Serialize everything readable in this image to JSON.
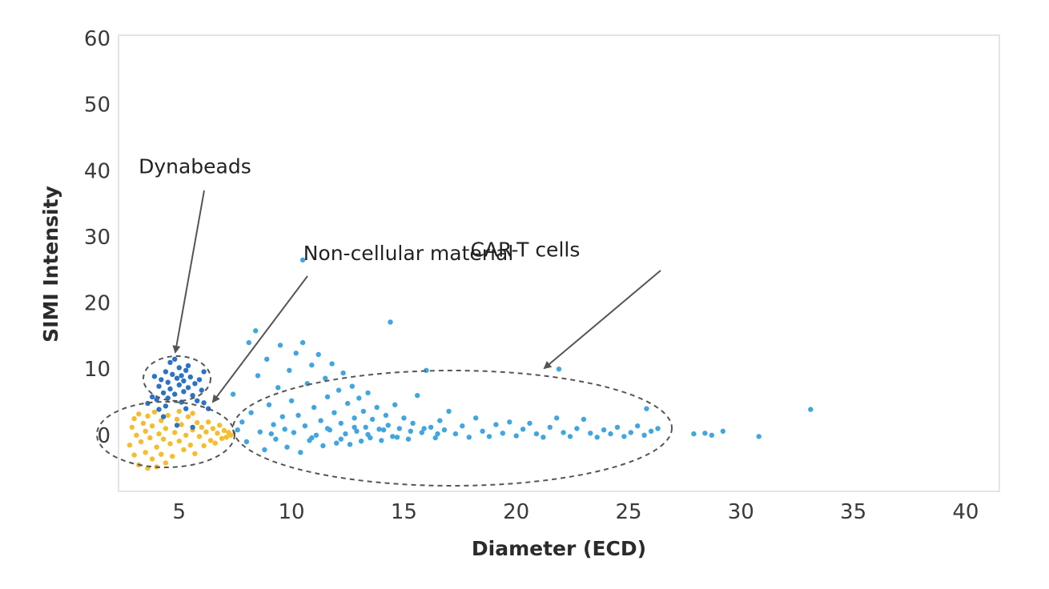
{
  "chart_data": {
    "type": "scatter",
    "title": "",
    "xlabel": "Diameter (ECD)",
    "ylabel": "SIMI Intensity",
    "xlim": [
      2.3,
      41.5
    ],
    "ylim": [
      -8.5,
      60.5
    ],
    "xticks": [
      "5",
      "10",
      "15",
      "20",
      "25",
      "30",
      "35",
      "40"
    ],
    "yticks": [
      "60",
      "50",
      "40",
      "30",
      "20",
      "10",
      "0"
    ],
    "grid": false,
    "legend": "none",
    "series": [
      {
        "color": "#f5bd2e",
        "points": [
          [
            2.8,
            -1.5
          ],
          [
            2.9,
            1.2
          ],
          [
            3.0,
            -3.0
          ],
          [
            3.0,
            2.5
          ],
          [
            3.1,
            0.0
          ],
          [
            3.2,
            -4.5
          ],
          [
            3.2,
            3.2
          ],
          [
            3.3,
            -1.0
          ],
          [
            3.4,
            1.8
          ],
          [
            3.5,
            -2.6
          ],
          [
            3.5,
            0.6
          ],
          [
            3.6,
            2.9
          ],
          [
            3.7,
            -0.4
          ],
          [
            3.8,
            -3.6
          ],
          [
            3.8,
            1.4
          ],
          [
            3.9,
            3.5
          ],
          [
            4.0,
            -1.8
          ],
          [
            4.1,
            0.2
          ],
          [
            4.2,
            2.2
          ],
          [
            4.2,
            -2.9
          ],
          [
            4.3,
            -0.6
          ],
          [
            4.4,
            1.0
          ],
          [
            4.5,
            3.0
          ],
          [
            4.6,
            -1.3
          ],
          [
            4.7,
            -3.2
          ],
          [
            4.8,
            0.4
          ],
          [
            4.9,
            2.4
          ],
          [
            5.0,
            -0.9
          ],
          [
            5.1,
            1.6
          ],
          [
            5.2,
            -2.2
          ],
          [
            5.3,
            0.0
          ],
          [
            5.4,
            2.8
          ],
          [
            5.5,
            -1.5
          ],
          [
            5.6,
            0.8
          ],
          [
            5.7,
            -2.8
          ],
          [
            5.8,
            1.9
          ],
          [
            5.9,
            -0.2
          ],
          [
            6.0,
            1.2
          ],
          [
            6.1,
            -1.6
          ],
          [
            6.2,
            0.5
          ],
          [
            6.3,
            2.0
          ],
          [
            6.4,
            -0.8
          ],
          [
            6.5,
            1.0
          ],
          [
            6.6,
            -1.2
          ],
          [
            6.7,
            0.3
          ],
          [
            6.8,
            1.5
          ],
          [
            6.9,
            -0.5
          ],
          [
            7.0,
            0.7
          ],
          [
            7.1,
            -0.3
          ],
          [
            7.2,
            0.4
          ],
          [
            7.3,
            0.0
          ],
          [
            4.0,
            -4.8
          ],
          [
            3.6,
            -5.0
          ],
          [
            5.0,
            3.6
          ],
          [
            5.6,
            3.3
          ],
          [
            4.4,
            -4.2
          ]
        ]
      },
      {
        "color": "#2d72c4",
        "points": [
          [
            4.6,
            11.0
          ],
          [
            4.8,
            11.5
          ],
          [
            5.0,
            10.2
          ],
          [
            4.4,
            9.6
          ],
          [
            4.7,
            9.2
          ],
          [
            5.1,
            9.0
          ],
          [
            5.3,
            9.8
          ],
          [
            4.2,
            8.4
          ],
          [
            4.5,
            8.0
          ],
          [
            4.9,
            8.6
          ],
          [
            5.2,
            8.2
          ],
          [
            5.5,
            8.8
          ],
          [
            4.1,
            7.4
          ],
          [
            4.6,
            7.0
          ],
          [
            5.0,
            7.6
          ],
          [
            5.4,
            7.2
          ],
          [
            5.7,
            7.8
          ],
          [
            4.3,
            6.4
          ],
          [
            4.8,
            6.2
          ],
          [
            5.2,
            6.6
          ],
          [
            5.6,
            6.0
          ],
          [
            4.0,
            5.4
          ],
          [
            4.5,
            5.6
          ],
          [
            5.1,
            5.0
          ],
          [
            5.8,
            5.2
          ],
          [
            3.8,
            5.8
          ],
          [
            6.0,
            6.8
          ],
          [
            6.1,
            4.9
          ],
          [
            3.6,
            4.8
          ],
          [
            4.4,
            4.4
          ],
          [
            5.3,
            4.0
          ],
          [
            6.3,
            4.0
          ],
          [
            4.1,
            3.9
          ],
          [
            3.9,
            8.9
          ],
          [
            5.9,
            8.4
          ],
          [
            6.1,
            9.6
          ],
          [
            5.4,
            10.5
          ],
          [
            4.9,
            1.5
          ],
          [
            5.6,
            1.2
          ],
          [
            4.3,
            2.8
          ]
        ]
      },
      {
        "color": "#41a6e0",
        "points": [
          [
            7.4,
            6.2
          ],
          [
            7.6,
            0.8
          ],
          [
            7.8,
            2.0
          ],
          [
            8.0,
            -1.0
          ],
          [
            8.1,
            14.0
          ],
          [
            8.4,
            15.8
          ],
          [
            8.2,
            3.4
          ],
          [
            8.5,
            9.0
          ],
          [
            8.6,
            0.5
          ],
          [
            8.8,
            -2.2
          ],
          [
            8.9,
            11.5
          ],
          [
            9.0,
            4.6
          ],
          [
            9.2,
            1.6
          ],
          [
            9.3,
            -0.6
          ],
          [
            9.4,
            7.2
          ],
          [
            9.5,
            13.6
          ],
          [
            9.6,
            2.8
          ],
          [
            9.8,
            -1.8
          ],
          [
            9.9,
            9.8
          ],
          [
            10.0,
            5.2
          ],
          [
            10.1,
            0.4
          ],
          [
            10.2,
            12.4
          ],
          [
            10.3,
            3.0
          ],
          [
            10.4,
            -2.6
          ],
          [
            10.5,
            14.0
          ],
          [
            10.6,
            1.4
          ],
          [
            10.7,
            7.8
          ],
          [
            10.8,
            -0.8
          ],
          [
            10.9,
            10.6
          ],
          [
            11.0,
            4.2
          ],
          [
            11.1,
            0.0
          ],
          [
            11.2,
            12.2
          ],
          [
            11.3,
            2.2
          ],
          [
            11.4,
            -1.6
          ],
          [
            11.5,
            8.6
          ],
          [
            11.6,
            5.8
          ],
          [
            11.7,
            0.8
          ],
          [
            11.8,
            10.8
          ],
          [
            11.9,
            3.4
          ],
          [
            12.0,
            -1.2
          ],
          [
            12.1,
            6.8
          ],
          [
            12.2,
            1.8
          ],
          [
            12.3,
            9.4
          ],
          [
            12.4,
            0.2
          ],
          [
            12.5,
            4.8
          ],
          [
            12.6,
            -1.4
          ],
          [
            12.7,
            7.4
          ],
          [
            12.8,
            2.6
          ],
          [
            12.9,
            0.6
          ],
          [
            13.0,
            5.6
          ],
          [
            13.1,
            -0.9
          ],
          [
            13.2,
            3.6
          ],
          [
            13.3,
            1.2
          ],
          [
            13.4,
            6.4
          ],
          [
            13.5,
            -0.4
          ],
          [
            13.6,
            2.4
          ],
          [
            13.8,
            4.2
          ],
          [
            13.9,
            0.9
          ],
          [
            14.0,
            -0.8
          ],
          [
            14.2,
            3.0
          ],
          [
            14.3,
            1.5
          ],
          [
            14.4,
            17.1
          ],
          [
            14.5,
            -0.2
          ],
          [
            14.6,
            4.6
          ],
          [
            14.8,
            1.0
          ],
          [
            15.0,
            2.6
          ],
          [
            15.2,
            -0.6
          ],
          [
            15.4,
            1.8
          ],
          [
            15.6,
            6.0
          ],
          [
            15.8,
            0.4
          ],
          [
            16.0,
            9.8
          ],
          [
            16.2,
            1.2
          ],
          [
            16.4,
            -0.4
          ],
          [
            16.6,
            2.2
          ],
          [
            16.8,
            0.8
          ],
          [
            17.0,
            3.6
          ],
          [
            17.3,
            0.2
          ],
          [
            17.6,
            1.4
          ],
          [
            17.9,
            -0.3
          ],
          [
            18.2,
            2.6
          ],
          [
            18.5,
            0.6
          ],
          [
            18.8,
            -0.2
          ],
          [
            19.1,
            1.6
          ],
          [
            19.4,
            0.3
          ],
          [
            19.7,
            2.0
          ],
          [
            20.0,
            -0.1
          ],
          [
            20.3,
            0.9
          ],
          [
            20.6,
            1.8
          ],
          [
            20.9,
            0.2
          ],
          [
            21.2,
            -0.3
          ],
          [
            21.5,
            1.2
          ],
          [
            21.8,
            2.6
          ],
          [
            21.9,
            10.0
          ],
          [
            22.1,
            0.4
          ],
          [
            22.4,
            -0.2
          ],
          [
            22.7,
            1.0
          ],
          [
            23.0,
            2.4
          ],
          [
            23.3,
            0.3
          ],
          [
            23.6,
            -0.3
          ],
          [
            23.9,
            0.8
          ],
          [
            24.2,
            0.2
          ],
          [
            24.5,
            1.2
          ],
          [
            24.8,
            -0.2
          ],
          [
            25.1,
            0.4
          ],
          [
            25.4,
            1.4
          ],
          [
            25.7,
            0.0
          ],
          [
            25.8,
            4.0
          ],
          [
            26.0,
            0.6
          ],
          [
            26.3,
            1.0
          ],
          [
            27.9,
            0.2
          ],
          [
            28.4,
            0.3
          ],
          [
            28.7,
            0.0
          ],
          [
            29.2,
            0.6
          ],
          [
            30.8,
            -0.2
          ],
          [
            33.1,
            3.9
          ],
          [
            10.5,
            26.5
          ],
          [
            9.1,
            0.2
          ],
          [
            9.7,
            0.9
          ],
          [
            10.9,
            -0.4
          ],
          [
            11.6,
            1.0
          ],
          [
            12.2,
            -0.6
          ],
          [
            12.8,
            1.2
          ],
          [
            13.4,
            0.1
          ],
          [
            14.1,
            0.8
          ],
          [
            14.7,
            -0.3
          ],
          [
            15.3,
            0.6
          ],
          [
            15.9,
            1.0
          ],
          [
            16.5,
            0.2
          ]
        ]
      }
    ],
    "annotations": [
      {
        "text": "Dynabeads",
        "x": 5.7,
        "y": 39.6
      },
      {
        "text": "Non-cellular material",
        "x": 15.2,
        "y": 26.5
      },
      {
        "text": "CAR-T cells",
        "x": 20.4,
        "y": 27.0
      }
    ]
  }
}
